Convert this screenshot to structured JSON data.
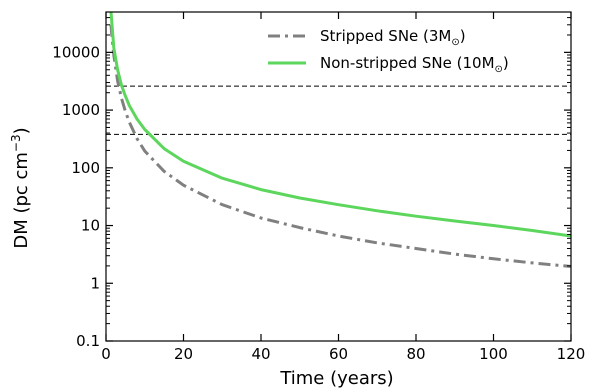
{
  "chart_data": {
    "type": "line",
    "xlabel": "Time (years)",
    "ylabel_main": "DM (pc cm",
    "ylabel_exp": "−3",
    "ylabel_close": ")",
    "xlim": [
      0,
      120
    ],
    "ylim": [
      0.1,
      50000
    ],
    "yscale": "log",
    "x_ticks": [
      0,
      20,
      40,
      60,
      80,
      100,
      120
    ],
    "x_tick_labels": [
      "0",
      "20",
      "40",
      "60",
      "80",
      "100",
      "120"
    ],
    "y_ticks": [
      0.1,
      1,
      10,
      100,
      1000,
      10000
    ],
    "y_tick_labels": [
      "0.1",
      "1",
      "10",
      "100",
      "1000",
      "10000"
    ],
    "legend_position": "top-right",
    "grid": false,
    "series": [
      {
        "name": "Stripped SNe (3M",
        "name_sub": "⊙",
        "name_close": ")",
        "color": "#808080",
        "style": "dashdot",
        "x": [
          1.3,
          1.5,
          2,
          3,
          4,
          5,
          6,
          8,
          10,
          15,
          20,
          30,
          40,
          50,
          60,
          70,
          80,
          90,
          100,
          110,
          120
        ],
        "y": [
          30000,
          20000,
          9000,
          3200,
          1600,
          950,
          620,
          320,
          195,
          87,
          50,
          23,
          13.5,
          9.2,
          6.6,
          5.0,
          4.0,
          3.2,
          2.65,
          2.25,
          1.95
        ]
      },
      {
        "name": "Non-stripped SNe (10M",
        "name_sub": "⊙",
        "name_close": ")",
        "color": "#5cd65c",
        "style": "solid",
        "x": [
          1.3,
          2,
          3,
          4,
          5,
          6,
          8,
          10,
          15,
          20,
          30,
          40,
          50,
          60,
          70,
          80,
          90,
          100,
          110,
          120
        ],
        "y": [
          50000,
          12000,
          5000,
          2700,
          1750,
          1200,
          700,
          460,
          215,
          130,
          66,
          42,
          30,
          23,
          18,
          14.5,
          12,
          10,
          8.2,
          6.6
        ]
      }
    ],
    "hlines": [
      {
        "y": 2600,
        "color": "#000000",
        "style": "dashed"
      },
      {
        "y": 380,
        "color": "#000000",
        "style": "dashed"
      }
    ]
  }
}
